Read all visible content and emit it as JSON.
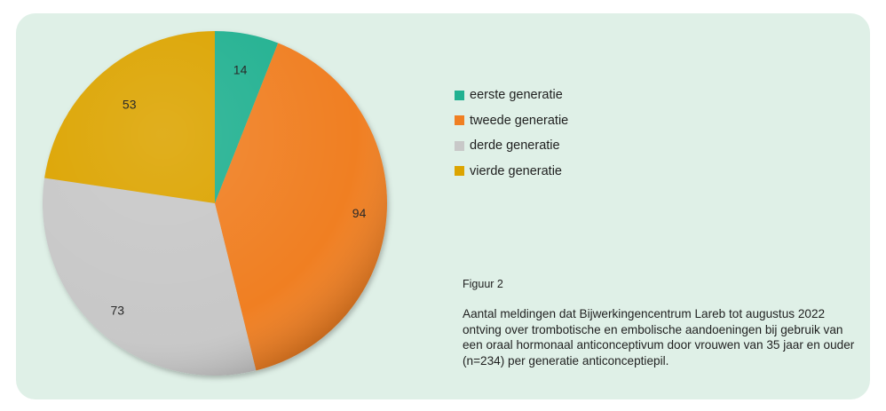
{
  "chart_data": {
    "type": "pie",
    "categories": [
      "eerste generatie",
      "tweede generatie",
      "derde generatie",
      "vierde generatie"
    ],
    "values": [
      14,
      94,
      73,
      53
    ],
    "colors": [
      "#21b191",
      "#f07f22",
      "#c8c8c8",
      "#dca400"
    ],
    "start_angle_deg": 0,
    "direction": "clockwise",
    "legend_position": "right"
  },
  "figure": {
    "label": "Figuur 2",
    "caption": "Aantal meldingen dat Bijwerkingencentrum Lareb tot augustus 2022 ontving over trombotische en embolische aandoeningen bij gebruik van een oraal hormonaal anticonceptivum door vrouwen van 35 jaar en ouder (n=234) per generatie anticonceptiepil."
  }
}
